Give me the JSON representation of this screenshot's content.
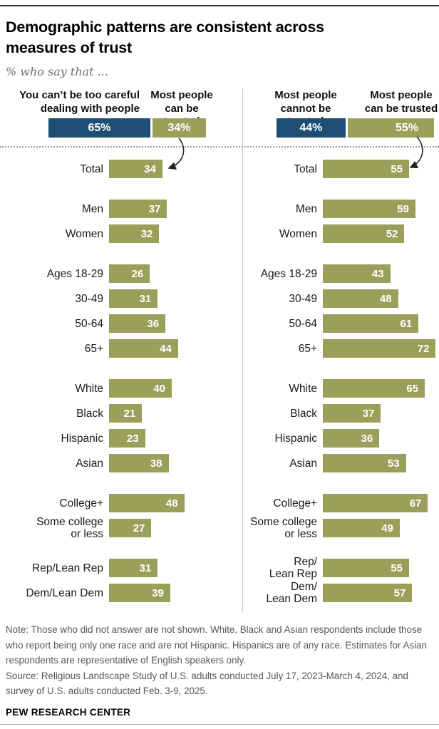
{
  "title": "Demographic patterns are consistent across\nmeasures of trust",
  "subtitle": "% who say that ...",
  "colors": {
    "negative_blue": "#1E4E73",
    "positive_green": "#9AA05A",
    "arrow": "#222222"
  },
  "chart_data": [
    {
      "type": "bar",
      "panel": "left",
      "xlim": [
        0,
        100
      ],
      "stacked_bar": {
        "segments": [
          {
            "label": "You can’t be too careful dealing with people",
            "label_display": "You can’t be too careful\ndealing with people",
            "value": 65,
            "display_value": "65%",
            "color": "#1E4E73"
          },
          {
            "label": "Most people can be trusted",
            "label_display": "Most people\ncan be trusted",
            "value": 34,
            "display_value": "34%",
            "color": "#9AA05A"
          }
        ]
      },
      "bar_color": "#9AA05A",
      "categories": [
        "Total",
        "Men",
        "Women",
        "Ages 18-29",
        "30-49",
        "50-64",
        "65+",
        "White",
        "Black",
        "Hispanic",
        "Asian",
        "College+",
        "Some college or less",
        "Rep/Lean Rep",
        "Dem/Lean Dem"
      ],
      "category_display": [
        "Total",
        "Men",
        "Women",
        "Ages 18-29",
        "30-49",
        "50-64",
        "65+",
        "White",
        "Black",
        "Hispanic",
        "Asian",
        "College+",
        "Some college\nor less",
        "Rep/Lean Rep",
        "Dem/Lean Dem"
      ],
      "values": [
        34,
        37,
        32,
        26,
        31,
        36,
        44,
        40,
        21,
        23,
        38,
        48,
        27,
        31,
        39
      ],
      "groups": [
        [
          0
        ],
        [
          1,
          2
        ],
        [
          3,
          4,
          5,
          6
        ],
        [
          7,
          8,
          9,
          10
        ],
        [
          11,
          12
        ],
        [
          13,
          14
        ]
      ]
    },
    {
      "type": "bar",
      "panel": "right",
      "xlim": [
        0,
        100
      ],
      "stacked_bar": {
        "segments": [
          {
            "label": "Most people cannot be trusted",
            "label_display": "Most people\ncannot be trusted",
            "value": 44,
            "display_value": "44%",
            "color": "#1E4E73"
          },
          {
            "label": "Most people can be trusted",
            "label_display": "Most people\ncan be trusted",
            "value": 55,
            "display_value": "55%",
            "color": "#9AA05A"
          }
        ]
      },
      "bar_color": "#9AA05A",
      "categories": [
        "Total",
        "Men",
        "Women",
        "Ages 18-29",
        "30-49",
        "50-64",
        "65+",
        "White",
        "Black",
        "Hispanic",
        "Asian",
        "College+",
        "Some college or less",
        "Rep/Lean Rep",
        "Dem/Lean Dem"
      ],
      "category_display": [
        "Total",
        "Men",
        "Women",
        "Ages 18-29",
        "30-49",
        "50-64",
        "65+",
        "White",
        "Black",
        "Hispanic",
        "Asian",
        "College+",
        "Some college\nor less",
        "Rep/\nLean Rep",
        "Dem/\nLean Dem"
      ],
      "values": [
        55,
        59,
        52,
        43,
        48,
        61,
        72,
        65,
        37,
        36,
        53,
        67,
        49,
        55,
        57
      ],
      "groups": [
        [
          0
        ],
        [
          1,
          2
        ],
        [
          3,
          4,
          5,
          6
        ],
        [
          7,
          8,
          9,
          10
        ],
        [
          11,
          12
        ],
        [
          13,
          14
        ]
      ]
    }
  ],
  "note": "Note: Those who did not answer are not shown. White, Black and Asian respondents include those who report being only one race and are not Hispanic. Hispanics are of any race. Estimates for Asian respondents are representative of English speakers only.",
  "source": "Source: Religious Landscape Study of U.S. adults conducted July 17, 2023-March 4, 2024, and survey of U.S. adults conducted Feb. 3-9, 2025.",
  "footer": "PEW RESEARCH CENTER"
}
